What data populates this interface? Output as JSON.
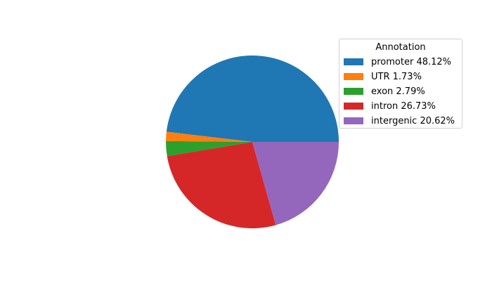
{
  "chart_data": {
    "type": "pie",
    "legend_title": "Annotation",
    "legend_placement": "top-right",
    "start_angle_deg": 0,
    "direction": "counterclockwise",
    "slices": [
      {
        "label": "promoter 48.12%",
        "category": "promoter",
        "value": 48.12,
        "color": "#1f77b4"
      },
      {
        "label": "UTR 1.73%",
        "category": "UTR",
        "value": 1.73,
        "color": "#ff7f0e"
      },
      {
        "label": "exon 2.79%",
        "category": "exon",
        "value": 2.79,
        "color": "#2ca02c"
      },
      {
        "label": "intron 26.73%",
        "category": "intron",
        "value": 26.73,
        "color": "#d62728"
      },
      {
        "label": "intergenic 20.62%",
        "category": "intergenic",
        "value": 20.62,
        "color": "#9467bd"
      }
    ]
  }
}
